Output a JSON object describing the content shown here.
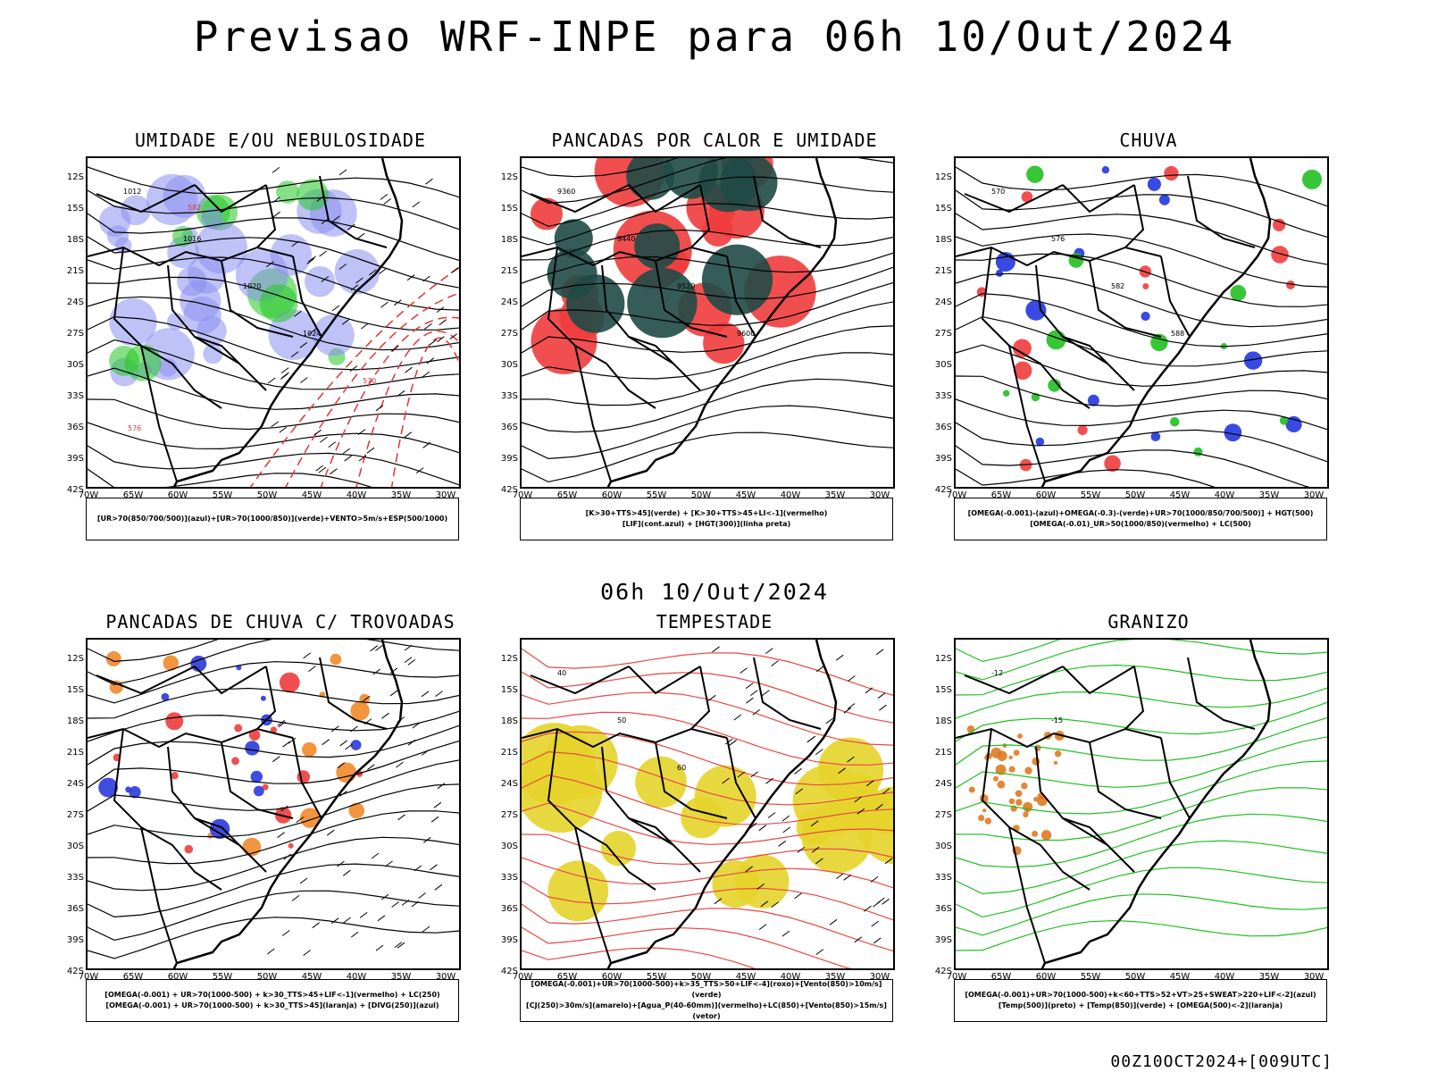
{
  "header": {
    "title": "Previsao WRF-INPE  para 06h 10/Out/2024",
    "mid_title": "06h 10/Out/2024",
    "footer": "00Z10OCT2024+[009UTC]"
  },
  "axes": {
    "lat_labels": [
      "12S",
      "15S",
      "18S",
      "21S",
      "24S",
      "27S",
      "30S",
      "33S",
      "36S",
      "39S",
      "42S"
    ],
    "lon_labels": [
      "70W",
      "65W",
      "60W",
      "55W",
      "50W",
      "45W",
      "40W",
      "35W",
      "30W"
    ]
  },
  "panels": [
    {
      "title": "UMIDADE E/OU NEBULOSIDADE",
      "legend": [
        "[UR>70(850/700/500)](azul)+[UR>70(1000/850)](verde)+VENTO>5m/s+ESP(500/1000)"
      ],
      "colors": [
        "#8a8ff0",
        "#23c923",
        "#e03535"
      ],
      "contour_labels": [
        "1012",
        "1016",
        "1020",
        "1024",
        "570",
        "576",
        "582"
      ]
    },
    {
      "title": "PANCADAS POR CALOR E UMIDADE",
      "legend": [
        "[K>30+TTS>45](verde) + [K>30+TTS>45+LI<-1](vermelho)",
        "[LIF](cont.azul) + [HGT(300)](linha preta)"
      ],
      "colors": [
        "#1f4a46",
        "#f03c3c",
        "#2a3adc"
      ],
      "contour_labels": [
        "9360",
        "9440",
        "9520",
        "9600"
      ]
    },
    {
      "title": "CHUVA",
      "legend": [
        "[OMEGA(-0.001)-(azul)+OMEGA(-0.3)-(verde)+UR>70(1000/850/700/500)] + HGT(500)",
        "[OMEGA(-0.01)_UR>50(1000/850)(vermelho) + LC(500)"
      ],
      "colors": [
        "#2236e0",
        "#20c020",
        "#f03c3c"
      ],
      "contour_labels": [
        "570",
        "576",
        "582",
        "588"
      ]
    },
    {
      "title": "PANCADAS DE CHUVA C/ TROVOADAS",
      "legend": [
        "[OMEGA(-0.001) + UR>70(1000-500) + k>30_TTS>45+LIF<-1](vermelho) + LC(250)",
        "[OMEGA(-0.001) + UR>70(1000-500) + k>30_TTS>45](laranja) + [DIVG(250)](azul)"
      ],
      "colors": [
        "#f03c3c",
        "#f08a2a",
        "#2a3adc"
      ],
      "contour_labels": []
    },
    {
      "title": "TEMPESTADE",
      "legend": [
        "[OMEGA(-0.001)+UR>70(1000-500)+k>35_TTS>50+LIF<-4](roxo)+[Vento(850)>10m/s](verde)",
        "[CJ(250)>30m/s](amarelo)+[Agua_P(40-60mm)](vermelho)+LC(850)+[Vento(850)>15m/s](vetor)"
      ],
      "colors": [
        "#e6d42a",
        "#e84848",
        "#20b020"
      ],
      "contour_labels": [
        "40",
        "50",
        "60"
      ]
    },
    {
      "title": "GRANIZO",
      "legend": [
        "[OMEGA(-0.001)+UR>70(1000-500)+k<60+TTS>52+VT>25+SWEAT>220+LIF<-2](azul)",
        "[Temp(500)](preto) + [Temp(850)](verde) + [OMEGA(500)<-2](laranja)"
      ],
      "colors": [
        "#20c020",
        "#000000",
        "#e07a20"
      ],
      "contour_labels": [
        "-12",
        "-15"
      ]
    }
  ]
}
